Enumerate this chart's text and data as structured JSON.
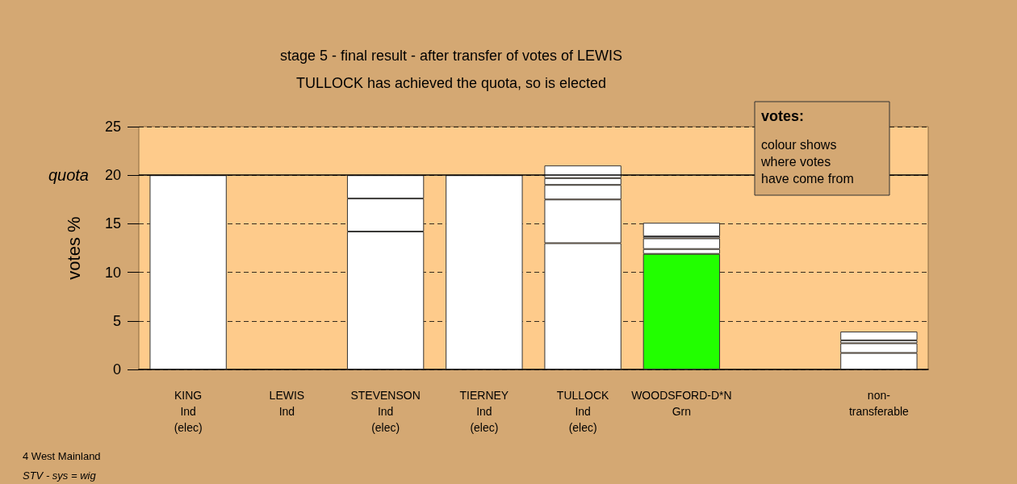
{
  "chart_data": {
    "type": "bar",
    "stacked": true,
    "title": "stage 5 - final result - after transfer of votes of LEWIS",
    "subtitle": "TULLOCK has achieved the quota, so is elected",
    "ylabel": "votes %",
    "categories": [
      "KING\nInd\n(elec)",
      "LEWIS\nInd",
      "STEVENSON\nInd\n(elec)",
      "TIERNEY\nInd\n(elec)",
      "TULLOCK\nInd\n(elec)",
      "WOODSFORD-D*N\nGrn",
      null,
      "non-\ntransferable"
    ],
    "series": [
      {
        "colors": [
          "#ffffff",
          "#ffffff",
          "#ffffff",
          "#ffffff",
          "#ffffff",
          "#22ff00",
          "#ffffff",
          "#ffffff"
        ],
        "values": [
          20,
          0,
          14.2,
          20,
          13.0,
          11.9,
          null,
          1.7
        ]
      },
      {
        "color": "#ffffff",
        "values": [
          null,
          null,
          3.4,
          null,
          4.5,
          0.5,
          null,
          1.0
        ]
      },
      {
        "color": "#ffffff",
        "values": [
          null,
          null,
          2.4,
          null,
          1.5,
          1.1,
          null,
          0.3
        ]
      },
      {
        "color": "#ffffff",
        "values": [
          null,
          null,
          null,
          null,
          0.7,
          0.2,
          null,
          0.9
        ]
      },
      {
        "color": "#ffffff",
        "values": [
          null,
          null,
          null,
          null,
          1.3,
          1.4,
          null,
          null
        ]
      }
    ],
    "ylim": [
      0,
      25
    ],
    "yticks": [
      0,
      5,
      10,
      15,
      20,
      25
    ],
    "grid": "y",
    "ref_lines": [
      {
        "axis": "y",
        "value": 20,
        "label": "quota",
        "color": "#000000",
        "line_style": "solid"
      }
    ],
    "annotations": [
      "votes:",
      "colour shows\nwhere votes\nhave come from",
      "4 West Mainland",
      "STV - sys = wig"
    ]
  }
}
